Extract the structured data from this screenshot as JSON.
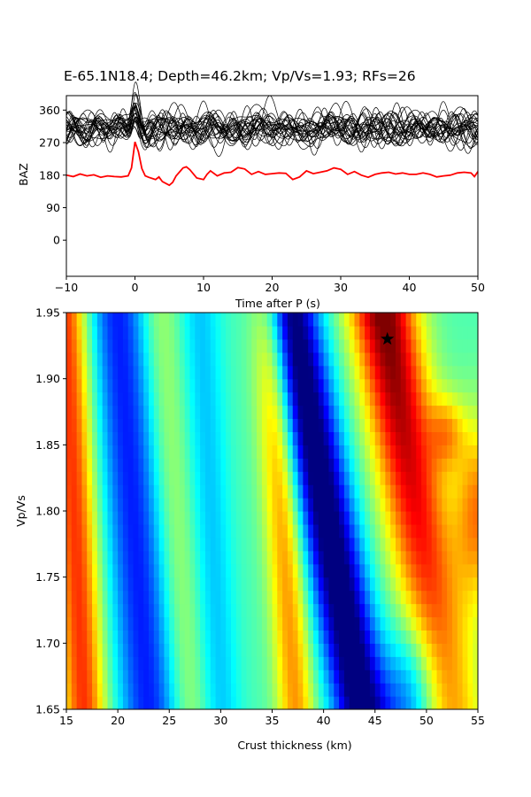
{
  "figure": {
    "title": "E-65.1N18.4; Depth=46.2km; Vp/Vs=1.93; RFs=26"
  },
  "chart_data": [
    {
      "type": "line",
      "panel": "receiver-functions",
      "xlabel": "Time after P (s)",
      "ylabel": "BAZ",
      "xlim": [
        -10,
        50
      ],
      "ylim": [
        -100,
        400
      ],
      "x_ticks": [
        "−10",
        "0",
        "10",
        "20",
        "30",
        "40",
        "50"
      ],
      "x_tick_values": [
        -10,
        0,
        10,
        20,
        30,
        40,
        50
      ],
      "y_ticks": [
        "0",
        "90",
        "180",
        "270",
        "360"
      ],
      "y_tick_values": [
        0,
        90,
        180,
        270,
        360
      ],
      "traces": {
        "count": 26,
        "baz_center_range": [
          295,
          330
        ],
        "color": "#000000",
        "peak_time_s": 0,
        "peak_offset_baz": 60
      },
      "stacked_trace": {
        "color": "#ff0000",
        "baseline_baz": 180,
        "points": [
          [
            -10,
            180
          ],
          [
            -9,
            176
          ],
          [
            -8,
            183
          ],
          [
            -7,
            178
          ],
          [
            -6,
            181
          ],
          [
            -5,
            174
          ],
          [
            -4,
            178
          ],
          [
            -3,
            176
          ],
          [
            -2,
            175
          ],
          [
            -1,
            178
          ],
          [
            -0.5,
            200
          ],
          [
            0,
            272
          ],
          [
            0.5,
            245
          ],
          [
            1,
            198
          ],
          [
            1.5,
            178
          ],
          [
            2,
            174
          ],
          [
            3,
            168
          ],
          [
            3.5,
            175
          ],
          [
            4,
            162
          ],
          [
            5,
            152
          ],
          [
            5.5,
            160
          ],
          [
            6,
            178
          ],
          [
            7,
            200
          ],
          [
            7.5,
            203
          ],
          [
            8,
            195
          ],
          [
            9,
            172
          ],
          [
            10,
            168
          ],
          [
            10.5,
            182
          ],
          [
            11,
            192
          ],
          [
            12,
            178
          ],
          [
            13,
            186
          ],
          [
            14,
            188
          ],
          [
            15,
            201
          ],
          [
            16,
            197
          ],
          [
            17,
            182
          ],
          [
            18,
            190
          ],
          [
            19,
            182
          ],
          [
            20,
            184
          ],
          [
            21,
            186
          ],
          [
            22,
            185
          ],
          [
            23,
            168
          ],
          [
            24,
            175
          ],
          [
            25,
            192
          ],
          [
            26,
            184
          ],
          [
            27,
            188
          ],
          [
            28,
            192
          ],
          [
            29,
            200
          ],
          [
            30,
            196
          ],
          [
            31,
            182
          ],
          [
            32,
            190
          ],
          [
            33,
            180
          ],
          [
            34,
            174
          ],
          [
            35,
            182
          ],
          [
            36,
            186
          ],
          [
            37,
            188
          ],
          [
            38,
            183
          ],
          [
            39,
            186
          ],
          [
            40,
            182
          ],
          [
            41,
            182
          ],
          [
            42,
            186
          ],
          [
            43,
            182
          ],
          [
            44,
            175
          ],
          [
            45,
            178
          ],
          [
            46,
            180
          ],
          [
            47,
            186
          ],
          [
            48,
            188
          ],
          [
            49,
            186
          ],
          [
            49.5,
            176
          ],
          [
            50,
            190
          ]
        ]
      }
    },
    {
      "type": "heatmap",
      "panel": "hk-stacking",
      "xlabel": "Crust thickness (km)",
      "ylabel": "Vp/Vs",
      "xlim": [
        15,
        55
      ],
      "ylim": [
        1.65,
        1.95
      ],
      "x_ticks": [
        "15",
        "20",
        "25",
        "30",
        "35",
        "40",
        "45",
        "50",
        "55"
      ],
      "x_tick_values": [
        15,
        20,
        25,
        30,
        35,
        40,
        45,
        50,
        55
      ],
      "y_ticks": [
        "1.65",
        "1.70",
        "1.75",
        "1.80",
        "1.85",
        "1.90",
        "1.95"
      ],
      "y_tick_values": [
        1.65,
        1.7,
        1.75,
        1.8,
        1.85,
        1.9,
        1.95
      ],
      "colormap": "jet",
      "grid_H_step_km": 0.5,
      "grid_k_step": 0.01,
      "best": {
        "H_km": 46.2,
        "vpvs": 1.93,
        "marker": "star",
        "color": "#000000"
      }
    }
  ]
}
